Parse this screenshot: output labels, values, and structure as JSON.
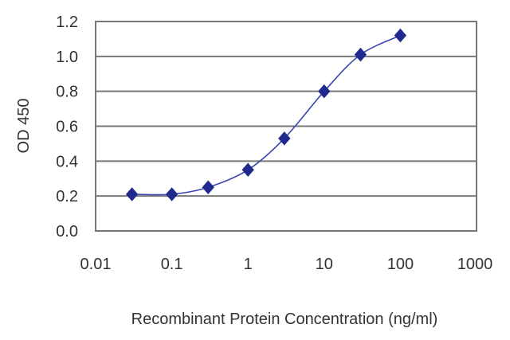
{
  "chart_data": {
    "type": "line",
    "title": "",
    "xlabel": "Recombinant Protein Concentration (ng/ml)",
    "ylabel": "OD 450",
    "xscale": "log",
    "xlim": [
      0.01,
      1000
    ],
    "ylim": [
      0.0,
      1.2
    ],
    "x_ticks": [
      "0.01",
      "0.1",
      "1",
      "10",
      "100",
      "1000"
    ],
    "y_ticks": [
      "0.0",
      "0.2",
      "0.4",
      "0.6",
      "0.8",
      "1.0",
      "1.2"
    ],
    "grid": "horizontal",
    "series": [
      {
        "x": [
          0.03,
          0.1,
          0.3,
          1,
          3,
          10,
          30,
          100
        ],
        "y": [
          0.21,
          0.21,
          0.25,
          0.35,
          0.53,
          0.8,
          1.01,
          1.12
        ],
        "color": "#1f2a8c",
        "marker": "diamond"
      }
    ]
  }
}
